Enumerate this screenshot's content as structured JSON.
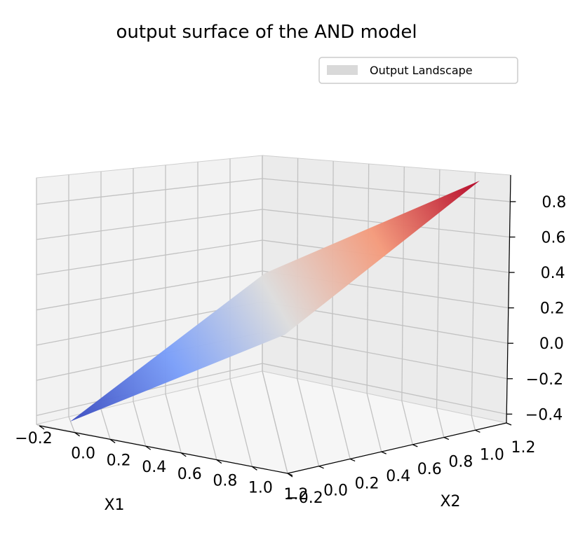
{
  "chart_data": {
    "type": "surface3d",
    "title": "output surface of the AND model",
    "xlabel": "X1",
    "ylabel": "X2",
    "zlabel": "",
    "legend": {
      "entries": [
        "Output Landscape"
      ],
      "placement": "top-right"
    },
    "grid": true,
    "colormap": "coolwarm",
    "colors": {
      "low": "#3b4cc0",
      "mid": "#dddddd",
      "high": "#b40426"
    },
    "x_ticks": [
      "−0.2",
      "0.0",
      "0.2",
      "0.4",
      "0.6",
      "0.8",
      "1.0",
      "1.2"
    ],
    "y_ticks": [
      "−0.2",
      "0.0",
      "0.2",
      "0.4",
      "0.6",
      "0.8",
      "1.0",
      "1.2"
    ],
    "z_ticks": [
      "−0.4",
      "−0.2",
      "0.0",
      "0.2",
      "0.4",
      "0.6",
      "0.8"
    ],
    "xlim": [
      -0.2,
      1.2
    ],
    "ylim": [
      -0.2,
      1.2
    ],
    "zlim": [
      -0.45,
      0.95
    ],
    "surface_corners": [
      {
        "x1": -0.2,
        "x2": -0.2,
        "z": -0.45
      },
      {
        "x1": 1.2,
        "x2": -0.2,
        "z": 0.25
      },
      {
        "x1": -0.2,
        "x2": 1.2,
        "z": 0.25
      },
      {
        "x1": 1.2,
        "x2": 1.2,
        "z": 0.95
      }
    ]
  }
}
